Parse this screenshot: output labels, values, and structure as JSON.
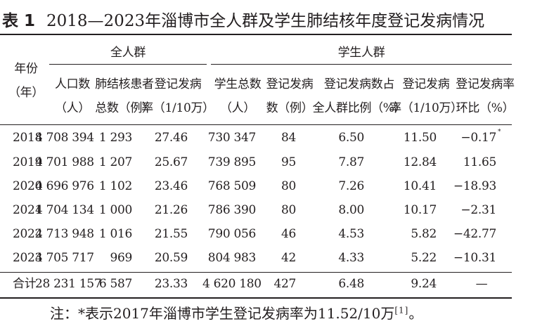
{
  "title": {
    "label": "表 1",
    "text": "2018—2023年淄博市全人群及学生肺结核年度登记发病情况"
  },
  "header": {
    "year_col": [
      "年份",
      "（年）"
    ],
    "group_all": "全人群",
    "group_students": "学生人群",
    "columns": [
      [
        "人口数",
        "（人）"
      ],
      [
        "肺结核患者",
        "总数（例）"
      ],
      [
        "登记发病",
        "率（1/10万）"
      ],
      [
        "学生总数",
        "（人）"
      ],
      [
        "登记发病",
        "数（例）"
      ],
      [
        "登记发病数占",
        "全人群比例（%）"
      ],
      [
        "登记发病",
        "率（1/10万）"
      ],
      [
        "登记发病率",
        "环比（%）"
      ]
    ]
  },
  "rows": [
    {
      "year": "2018",
      "cells": [
        "4 708 394",
        "1 293",
        "27.46",
        "730 347",
        "84",
        "6.50",
        "11.50",
        "−0.17"
      ],
      "mark": "*"
    },
    {
      "year": "2019",
      "cells": [
        "4 701 988",
        "1 207",
        "25.67",
        "739 895",
        "95",
        "7.87",
        "12.84",
        "11.65"
      ],
      "mark": ""
    },
    {
      "year": "2020",
      "cells": [
        "4 696 976",
        "1 102",
        "23.46",
        "768 509",
        "80",
        "7.26",
        "10.41",
        "−18.93"
      ],
      "mark": ""
    },
    {
      "year": "2021",
      "cells": [
        "4 704 134",
        "1 000",
        "21.26",
        "786 390",
        "80",
        "8.00",
        "10.17",
        "−2.31"
      ],
      "mark": ""
    },
    {
      "year": "2022",
      "cells": [
        "4 713 948",
        "1 016",
        "21.55",
        "790 056",
        "46",
        "4.53",
        "5.82",
        "−42.77"
      ],
      "mark": ""
    },
    {
      "year": "2023",
      "cells": [
        "4 705 717",
        "969",
        "20.59",
        "804 983",
        "42",
        "4.33",
        "5.22",
        "−10.31"
      ],
      "mark": ""
    }
  ],
  "total": {
    "year": "合计",
    "cells": [
      "28 231 157",
      "6 587",
      "23.33",
      "4 620 180",
      "427",
      "6.48",
      "9.24",
      "—"
    ]
  },
  "footnote": {
    "text": "注：*表示2017年淄博市学生登记发病率为11.52/10万",
    "ref": "[1]",
    "end": "。"
  }
}
